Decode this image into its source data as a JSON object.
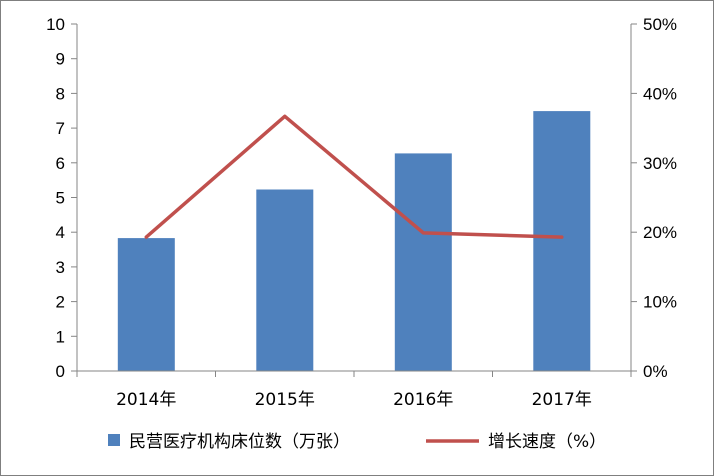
{
  "chart_data": {
    "type": "bar",
    "categories": [
      "2014年",
      "2015年",
      "2016年",
      "2017年"
    ],
    "series": [
      {
        "name": "民营医疗机构床位数（万张）",
        "type": "bar",
        "axis": "left",
        "color": "#4f81bd",
        "values": [
          3.83,
          5.23,
          6.27,
          7.49
        ]
      },
      {
        "name": "增长速度（%）",
        "type": "line",
        "axis": "right",
        "color": "#c0504d",
        "values": [
          19.3,
          36.7,
          19.9,
          19.3
        ]
      }
    ],
    "y_left": {
      "min": 0,
      "max": 10,
      "step": 1,
      "ticks": [
        "0",
        "1",
        "2",
        "3",
        "4",
        "5",
        "6",
        "7",
        "8",
        "9",
        "10"
      ]
    },
    "y_right": {
      "min": 0,
      "max": 50,
      "step": 10,
      "ticks": [
        "0%",
        "10%",
        "20%",
        "30%",
        "40%",
        "50%"
      ]
    },
    "legend_position": "bottom",
    "grid": false
  }
}
